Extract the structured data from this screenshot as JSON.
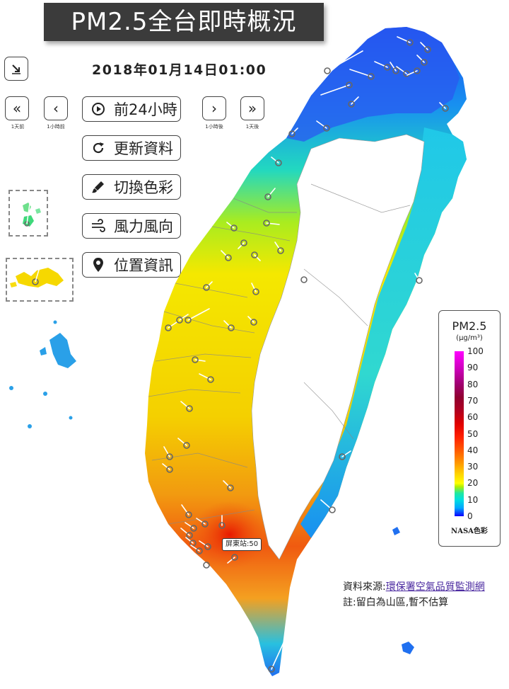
{
  "title": "PM2.5全台即時概況",
  "datetime": "2018年01月14日01:00",
  "nav": {
    "back_day_caption": "1天前",
    "back_hour_caption": "1小時前",
    "fwd_hour_caption": "1小時後",
    "fwd_day_caption": "1天後"
  },
  "actions": {
    "play_label": "前24小時",
    "refresh_label": "更新資料",
    "palette_label": "切換色彩",
    "wind_label": "風力風向",
    "location_label": "位置資訊"
  },
  "legend": {
    "title": "PM2.5",
    "unit": "(μg/m³)",
    "ticks": [
      "100",
      "90",
      "80",
      "70",
      "60",
      "50",
      "40",
      "30",
      "20",
      "10",
      "0"
    ],
    "palette_name": "NASA色彩"
  },
  "callout": "屏東站:50",
  "source": {
    "prefix": "資料來源:",
    "link_text": "環保署空氣品質監測網"
  },
  "note": "註:留白為山區,暫不估算",
  "colors": {
    "title_bg": "#3b3b3b",
    "link": "#4b2aa0"
  }
}
